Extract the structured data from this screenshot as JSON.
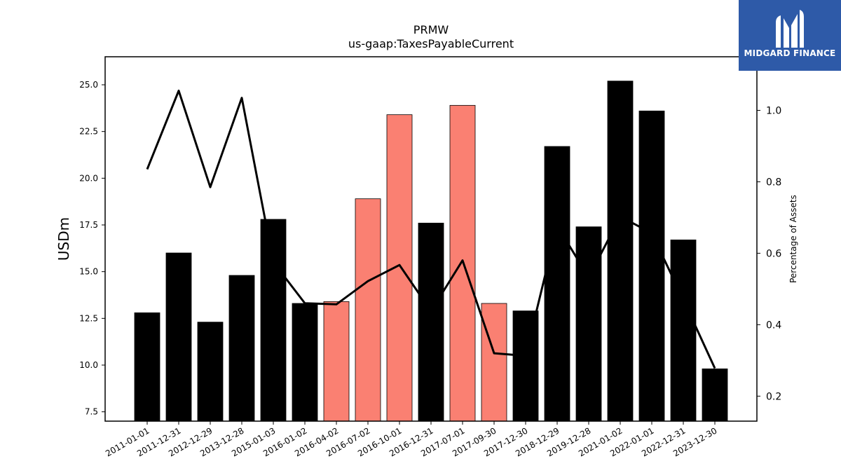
{
  "chart_data": {
    "type": "bar",
    "title": "PRMW",
    "subtitle": "us-gaap:TaxesPayableCurrent",
    "ylabel": "USDm",
    "y2label": "Percentage of Assets",
    "categories": [
      "2011-01-01",
      "2011-12-31",
      "2012-12-29",
      "2013-12-28",
      "2015-01-03",
      "2016-01-02",
      "2016-04-02",
      "2016-07-02",
      "2016-10-01",
      "2016-12-31",
      "2017-07-01",
      "2017-09-30",
      "2017-12-30",
      "2018-12-29",
      "2019-12-28",
      "2021-01-02",
      "2022-01-01",
      "2022-12-31",
      "2023-12-30"
    ],
    "series": [
      {
        "type": "bar",
        "axis": "left",
        "values": [
          12.8,
          16.0,
          12.3,
          14.8,
          17.8,
          13.3,
          13.4,
          18.9,
          23.4,
          17.6,
          23.9,
          13.3,
          12.9,
          21.7,
          17.4,
          25.2,
          23.6,
          16.7,
          9.8
        ],
        "colors": [
          "#000000",
          "#000000",
          "#000000",
          "#000000",
          "#000000",
          "#000000",
          "#fa8072",
          "#fa8072",
          "#fa8072",
          "#000000",
          "#fa8072",
          "#fa8072",
          "#000000",
          "#000000",
          "#000000",
          "#000000",
          "#000000",
          "#000000",
          "#000000"
        ]
      },
      {
        "type": "line",
        "axis": "right",
        "color": "#000000",
        "values": [
          0.835,
          1.055,
          0.785,
          1.035,
          0.575,
          0.46,
          0.457,
          0.522,
          0.567,
          0.438,
          0.58,
          0.32,
          0.313,
          0.677,
          0.532,
          0.703,
          0.656,
          0.47,
          0.278
        ]
      }
    ],
    "ylim": [
      7.0,
      26.5
    ],
    "yticks": [
      7.5,
      10.0,
      12.5,
      15.0,
      17.5,
      20.0,
      22.5,
      25.0
    ],
    "y2lim": [
      0.13,
      1.15
    ],
    "y2ticks": [
      0.2,
      0.4,
      0.6,
      0.8,
      1.0
    ]
  },
  "logo": {
    "name": "MIDGARD FINANCE"
  }
}
